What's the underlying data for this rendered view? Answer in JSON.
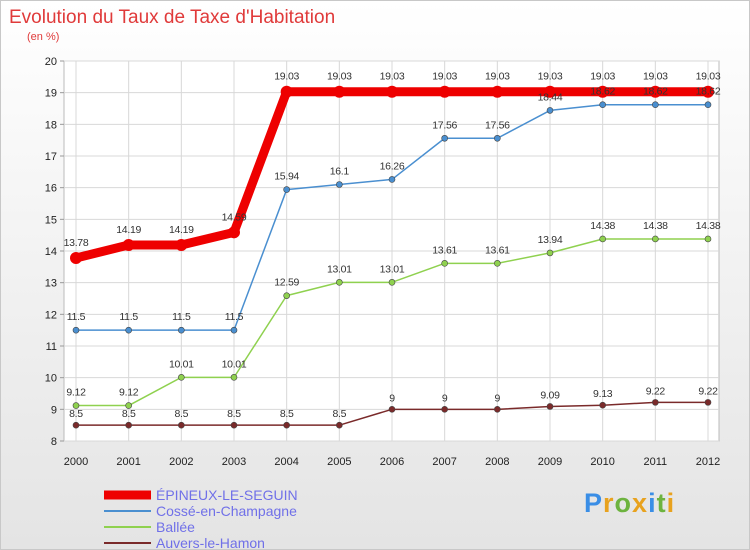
{
  "title": "Evolution du Taux de Taxe d'Habitation",
  "unit_label": "(en %)",
  "logo": {
    "letters": [
      "P",
      "r",
      "o",
      "x",
      "i",
      "t",
      "i"
    ],
    "colors": [
      "#3a8ee6",
      "#e8a21e",
      "#6db33f",
      "#e8a21e",
      "#3a8ee6",
      "#6db33f",
      "#e8a21e"
    ]
  },
  "chart_data": {
    "type": "line",
    "title": "Evolution du Taux de Taxe d'Habitation",
    "ylabel": "(en %)",
    "xlabel": "",
    "x": [
      "2000",
      "2001",
      "2002",
      "2003",
      "2004",
      "2005",
      "2006",
      "2007",
      "2008",
      "2009",
      "2010",
      "2011",
      "2012"
    ],
    "ylim": [
      8,
      20
    ],
    "yticks": [
      "8",
      "9",
      "10",
      "11",
      "12",
      "13",
      "14",
      "15",
      "16",
      "17",
      "18",
      "19",
      "20"
    ],
    "grid": true,
    "legend": "bottom-left",
    "series": [
      {
        "name": "ÉPINEUX-LE-SEGUIN",
        "color": "#ee0000",
        "values": [
          13.78,
          14.19,
          14.19,
          14.59,
          19.03,
          19.03,
          19.03,
          19.03,
          19.03,
          19.03,
          19.03,
          19.03,
          19.03
        ],
        "labels": [
          "13.78",
          "14.19",
          "14.19",
          "14.59",
          "19.03",
          "19.03",
          "19.03",
          "19.03",
          "19.03",
          "19.03",
          "19.03",
          "19.03",
          "19.03"
        ]
      },
      {
        "name": "Cossé-en-Champagne",
        "color": "#4a8fd0",
        "values": [
          11.5,
          11.5,
          11.5,
          11.5,
          15.94,
          16.1,
          16.26,
          17.56,
          17.56,
          18.44,
          18.62,
          18.62,
          18.62
        ],
        "labels": [
          "11.5",
          "11.5",
          "11.5",
          "11.5",
          "15.94",
          "16.1",
          "16.26",
          "17.56",
          "17.56",
          "18.44",
          "18.62",
          "18.62",
          "18.62"
        ]
      },
      {
        "name": "Ballée",
        "color": "#8fd14f",
        "values": [
          9.12,
          9.12,
          10.01,
          10.01,
          12.59,
          13.01,
          13.01,
          13.61,
          13.61,
          13.94,
          14.38,
          14.38,
          14.38
        ],
        "labels": [
          "9.12",
          "9.12",
          "10.01",
          "10.01",
          "12.59",
          "13.01",
          "13.01",
          "13.61",
          "13.61",
          "13.94",
          "14.38",
          "14.38",
          "14.38"
        ]
      },
      {
        "name": "Auvers-le-Hamon",
        "color": "#7a2a2a",
        "values": [
          8.5,
          8.5,
          8.5,
          8.5,
          8.5,
          8.5,
          9,
          9,
          9,
          9.09,
          9.13,
          9.22,
          9.22
        ],
        "labels": [
          "8.5",
          "8.5",
          "8.5",
          "8.5",
          "8.5",
          "8.5",
          "9",
          "9",
          "9",
          "9.09",
          "9.13",
          "9.22",
          "9.22"
        ]
      }
    ]
  }
}
